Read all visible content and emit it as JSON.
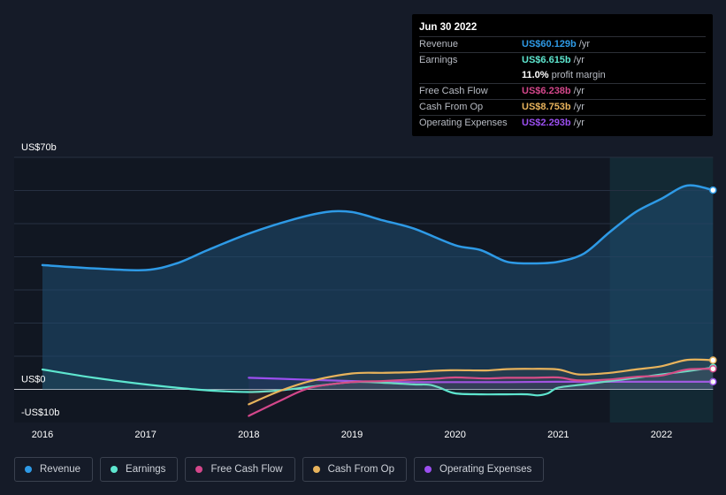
{
  "tooltip": {
    "date": "Jun 30 2022",
    "rows": [
      {
        "label": "Revenue",
        "value": "US$60.129b",
        "unit": "/yr",
        "color": "#2e9ae6"
      },
      {
        "label": "Earnings",
        "value": "US$6.615b",
        "unit": "/yr",
        "color": "#5ee6cf"
      },
      {
        "label": "",
        "value": "11.0%",
        "unit": "profit margin",
        "color": "#ffffff"
      },
      {
        "label": "Free Cash Flow",
        "value": "US$6.238b",
        "unit": "/yr",
        "color": "#d4478b"
      },
      {
        "label": "Cash From Op",
        "value": "US$8.753b",
        "unit": "/yr",
        "color": "#e8b35c"
      },
      {
        "label": "Operating Expenses",
        "value": "US$2.293b",
        "unit": "/yr",
        "color": "#9b4ff0"
      }
    ]
  },
  "legend": [
    {
      "label": "Revenue",
      "color": "#2e9ae6"
    },
    {
      "label": "Earnings",
      "color": "#5ee6cf"
    },
    {
      "label": "Free Cash Flow",
      "color": "#d4478b"
    },
    {
      "label": "Cash From Op",
      "color": "#e8b35c"
    },
    {
      "label": "Operating Expenses",
      "color": "#9b4ff0"
    }
  ],
  "chart_data": {
    "type": "area",
    "y_tick_labels": [
      "US$70b",
      "US$0",
      "-US$10b"
    ],
    "ylim": [
      -10,
      70
    ],
    "xlim": [
      2016.0,
      2022.5
    ],
    "x_tick_labels": [
      "2016",
      "2017",
      "2018",
      "2019",
      "2020",
      "2021",
      "2022"
    ],
    "x_ticks": [
      2016,
      2017,
      2018,
      2019,
      2020,
      2021,
      2022
    ],
    "highlight_range": [
      2021.5,
      2022.5
    ],
    "series": [
      {
        "name": "Revenue",
        "color": "#2e9ae6",
        "fill": true,
        "x": [
          2016.0,
          2016.5,
          2017.0,
          2017.3,
          2017.6,
          2018.0,
          2018.4,
          2018.75,
          2019.0,
          2019.3,
          2019.6,
          2020.0,
          2020.25,
          2020.5,
          2020.75,
          2021.0,
          2021.25,
          2021.5,
          2021.75,
          2022.0,
          2022.25,
          2022.5
        ],
        "values": [
          37.5,
          36.5,
          36,
          38,
          42,
          47,
          51,
          53.5,
          53.5,
          51,
          48.5,
          43.5,
          42,
          38.5,
          38,
          38.5,
          41,
          47.5,
          53.5,
          57.5,
          61.5,
          60.1
        ]
      },
      {
        "name": "Earnings",
        "color": "#5ee6cf",
        "x": [
          2016.0,
          2016.5,
          2017.0,
          2017.3,
          2017.6,
          2018.0,
          2018.3,
          2018.6,
          2019.0,
          2019.3,
          2019.6,
          2019.75,
          2019.85,
          2020.0,
          2020.25,
          2020.5,
          2020.7,
          2020.8,
          2020.9,
          2021.0,
          2021.25,
          2021.5,
          2021.75,
          2022.0,
          2022.25,
          2022.5
        ],
        "values": [
          6,
          3.5,
          1.5,
          0.5,
          -0.3,
          -0.8,
          -0.3,
          0.8,
          2.2,
          2,
          1.5,
          1.4,
          0.5,
          -1.2,
          -1.5,
          -1.5,
          -1.5,
          -1.8,
          -1.2,
          0.5,
          1.5,
          2.5,
          3.5,
          4.5,
          5.5,
          6.6
        ]
      },
      {
        "name": "Free Cash Flow",
        "color": "#d4478b",
        "x": [
          2018.0,
          2018.3,
          2018.6,
          2019.0,
          2019.3,
          2019.6,
          2019.8,
          2020.0,
          2020.3,
          2020.5,
          2020.75,
          2021.0,
          2021.2,
          2021.5,
          2021.75,
          2022.0,
          2022.25,
          2022.5
        ],
        "values": [
          -8,
          -3.5,
          0.5,
          2.2,
          2.5,
          3,
          3.2,
          3.6,
          3.3,
          3.5,
          3.5,
          3.6,
          2.7,
          3,
          3.8,
          4.2,
          6,
          6.2
        ]
      },
      {
        "name": "Cash From Op",
        "color": "#e8b35c",
        "x": [
          2018.0,
          2018.3,
          2018.6,
          2019.0,
          2019.3,
          2019.6,
          2019.8,
          2020.0,
          2020.3,
          2020.5,
          2020.75,
          2021.0,
          2021.2,
          2021.5,
          2021.75,
          2022.0,
          2022.25,
          2022.5
        ],
        "values": [
          -4.5,
          -0.5,
          2.5,
          4.8,
          5,
          5.2,
          5.6,
          5.8,
          5.7,
          6.1,
          6.2,
          6,
          4.5,
          5,
          6,
          7,
          8.9,
          8.8
        ]
      },
      {
        "name": "Operating Expenses",
        "color": "#9b4ff0",
        "x": [
          2018.0,
          2018.5,
          2019.0,
          2019.5,
          2020.0,
          2020.5,
          2021.0,
          2021.5,
          2022.0,
          2022.5
        ],
        "values": [
          3.5,
          3,
          2.5,
          2.2,
          2.2,
          2.2,
          2.3,
          2.3,
          2.3,
          2.3
        ]
      }
    ]
  }
}
